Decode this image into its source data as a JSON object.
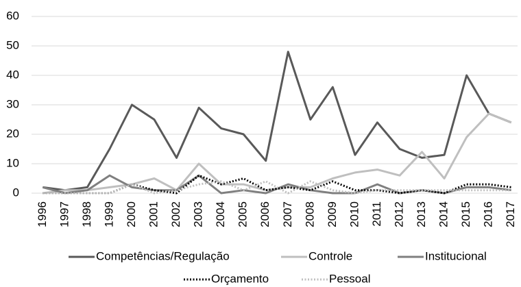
{
  "chart_data": {
    "type": "line",
    "categories": [
      "1996",
      "1997",
      "1998",
      "1999",
      "2000",
      "2001",
      "2002",
      "2003",
      "2004",
      "2005",
      "2006",
      "2007",
      "2008",
      "2009",
      "2010",
      "2011",
      "2012",
      "2013",
      "2014",
      "2015",
      "2016",
      "2017"
    ],
    "series": [
      {
        "name": "Competências/Regulação",
        "color": "#595959",
        "style": "solid",
        "values": [
          2,
          1,
          2,
          15,
          30,
          25,
          12,
          29,
          22,
          20,
          11,
          48,
          25,
          36,
          13,
          24,
          15,
          12,
          13,
          40,
          27,
          24
        ]
      },
      {
        "name": "Controle",
        "color": "#bfbfbf",
        "style": "solid",
        "values": [
          0,
          1,
          1,
          2,
          3,
          5,
          1,
          10,
          3,
          3,
          1,
          2,
          2,
          5,
          7,
          8,
          6,
          14,
          5,
          19,
          27,
          24
        ]
      },
      {
        "name": "Institucional",
        "color": "#7f7f7f",
        "style": "solid",
        "values": [
          2,
          0,
          1,
          6,
          2,
          1,
          1,
          6,
          0,
          1,
          0,
          3,
          1,
          0,
          0,
          3,
          0,
          1,
          0,
          2,
          2,
          1
        ]
      },
      {
        "name": "Orçamento",
        "color": "#000000",
        "style": "dotted",
        "values": [
          0,
          0,
          0,
          0,
          3,
          1,
          0,
          6,
          3,
          5,
          1,
          2,
          1,
          4,
          1,
          1,
          0,
          1,
          0,
          3,
          3,
          2
        ]
      },
      {
        "name": "Pessoal",
        "color": "#bfbfbf",
        "style": "dotted",
        "values": [
          0,
          0,
          0,
          0,
          3,
          0,
          1,
          3,
          4,
          1,
          4,
          0,
          4,
          1,
          0,
          1,
          1,
          1,
          1,
          1,
          1,
          1
        ]
      }
    ],
    "ylim": [
      0,
      60
    ],
    "yticks": [
      0,
      10,
      20,
      30,
      40,
      50,
      60
    ],
    "grid": true,
    "legend": "bottom"
  }
}
